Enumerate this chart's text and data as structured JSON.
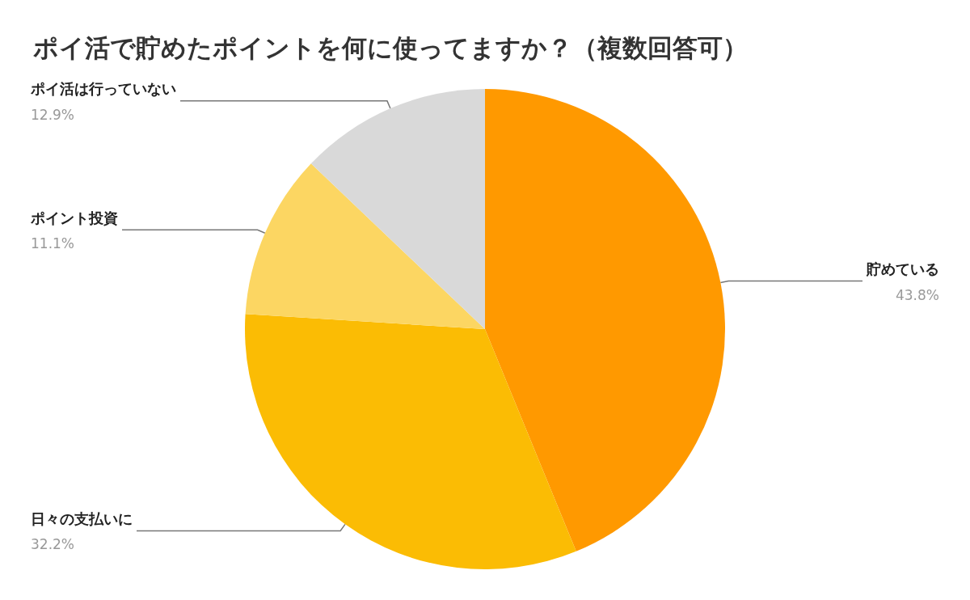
{
  "chart_data": {
    "type": "pie",
    "title": "ポイ活で貯めたポイントを何に使ってますか？（複数回答可）",
    "categories": [
      "貯めている",
      "日々の支払いに",
      "ポイント投資",
      "ポイ活は行っていない"
    ],
    "values": [
      43.8,
      32.2,
      11.1,
      12.9
    ],
    "value_labels": [
      "43.8%",
      "32.2%",
      "11.1%",
      "12.9%"
    ],
    "colors": [
      "#ff9900",
      "#fbbc04",
      "#fcd662",
      "#d9d9d9"
    ],
    "legend": false
  }
}
